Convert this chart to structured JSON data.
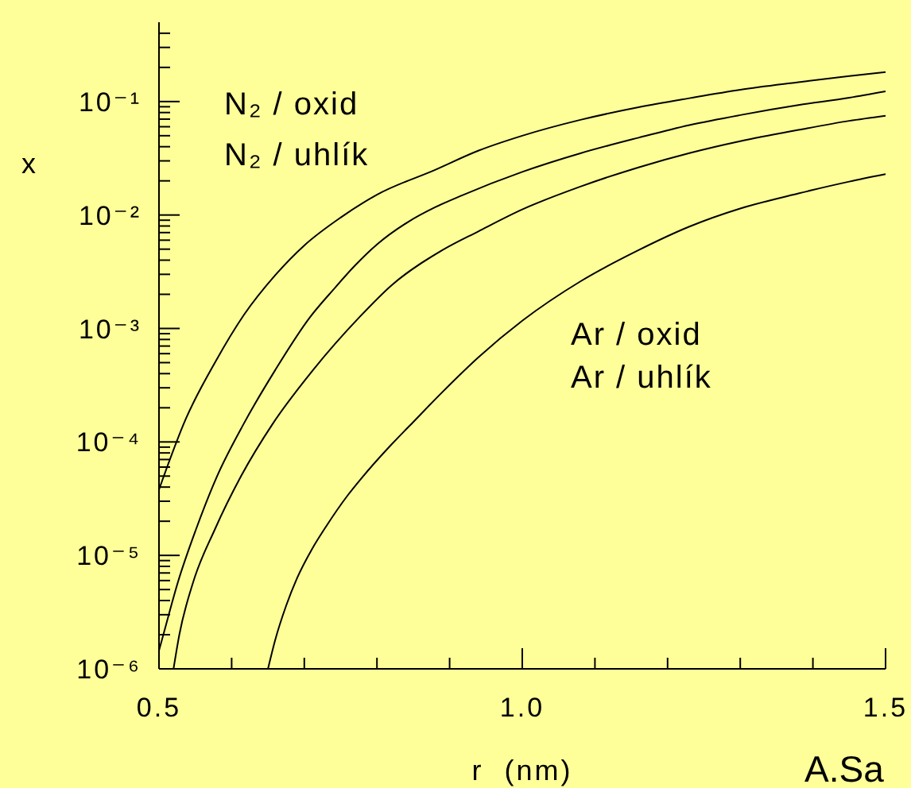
{
  "chart_data": {
    "type": "line",
    "xlabel": "r  (nm)",
    "ylabel": "x",
    "annotations": [
      "N₂ / oxid",
      "N₂ / uhlík",
      "Ar / oxid",
      "Ar / uhlík",
      "A.Sa"
    ],
    "log": true,
    "xlim": [
      0.5,
      1.5
    ],
    "xticks": [
      0.5,
      {
        "value": 0.6,
        "label": null
      },
      {
        "value": 0.7,
        "label": null
      },
      {
        "value": 0.8,
        "label": null
      },
      {
        "value": 0.9,
        "label": null
      },
      {
        "value": 1,
        "label": "1.0"
      },
      {
        "value": 1.1,
        "label": null
      },
      {
        "value": 1.2,
        "label": null
      },
      {
        "value": 1.3,
        "label": null
      },
      {
        "value": 1.4,
        "label": null
      },
      1.5
    ],
    "ylim": [
      1e-06,
      0.5
    ],
    "yticks": [
      {
        "value": 1e-06,
        "label": "10⁻⁶"
      },
      {
        "value": 2e-06,
        "label": null
      },
      {
        "value": 3e-06,
        "label": null
      },
      {
        "value": 4e-06,
        "label": null
      },
      {
        "value": 5e-06,
        "label": null
      },
      {
        "value": 6e-06,
        "label": null
      },
      {
        "value": 7e-06,
        "label": null
      },
      {
        "value": 8e-06,
        "label": null
      },
      {
        "value": 9e-06,
        "label": null
      },
      {
        "value": 1e-05,
        "label": "10⁻⁵"
      },
      {
        "value": 2e-05,
        "label": null
      },
      {
        "value": 3e-05,
        "label": null
      },
      {
        "value": 4e-05,
        "label": null
      },
      {
        "value": 5e-05,
        "label": null
      },
      {
        "value": 6e-05,
        "label": null
      },
      {
        "value": 7e-05,
        "label": null
      },
      {
        "value": 8e-05,
        "label": null
      },
      {
        "value": 9e-05,
        "label": null
      },
      {
        "value": 0.0001,
        "label": "10⁻⁴"
      },
      {
        "value": 0.0002,
        "label": null
      },
      {
        "value": 0.0003,
        "label": null
      },
      {
        "value": 0.0004,
        "label": null
      },
      {
        "value": 0.0005,
        "label": null
      },
      {
        "value": 0.0006,
        "label": null
      },
      {
        "value": 0.0007,
        "label": null
      },
      {
        "value": 0.0008,
        "label": null
      },
      {
        "value": 0.0009,
        "label": null
      },
      {
        "value": 0.001,
        "label": "10⁻³"
      },
      {
        "value": 0.002,
        "label": null
      },
      {
        "value": 0.003,
        "label": null
      },
      {
        "value": 0.004,
        "label": null
      },
      {
        "value": 0.005,
        "label": null
      },
      {
        "value": 0.006,
        "label": null
      },
      {
        "value": 0.007,
        "label": null
      },
      {
        "value": 0.008,
        "label": null
      },
      {
        "value": 0.009,
        "label": null
      },
      {
        "value": 0.01,
        "label": "10⁻²"
      },
      {
        "value": 0.02,
        "label": null
      },
      {
        "value": 0.03,
        "label": null
      },
      {
        "value": 0.04,
        "label": null
      },
      {
        "value": 0.05,
        "label": null
      },
      {
        "value": 0.06,
        "label": null
      },
      {
        "value": 0.07,
        "label": null
      },
      {
        "value": 0.08,
        "label": null
      },
      {
        "value": 0.09,
        "label": null
      },
      {
        "value": 0.1,
        "label": "10⁻¹"
      },
      {
        "value": 0.2,
        "label": null
      },
      {
        "value": 0.3,
        "label": null
      },
      {
        "value": 0.4,
        "label": null
      }
    ],
    "series": [
      {
        "color": "#000000",
        "x": [
          0.5,
          0.537,
          0.577,
          0.617,
          0.66,
          0.7,
          0.75,
          0.8,
          0.88,
          0.94,
          1.0,
          1.08,
          1.16,
          1.23,
          1.3,
          1.38,
          1.45,
          1.5
        ],
        "values": [
          3.8e-05,
          0.00016,
          0.0005,
          0.00132,
          0.00295,
          0.0054,
          0.0095,
          0.0151,
          0.025,
          0.037,
          0.05,
          0.069,
          0.089,
          0.107,
          0.127,
          0.148,
          0.168,
          0.182
        ]
      },
      {
        "color": "#000000",
        "x": [
          0.5,
          0.506,
          0.526,
          0.551,
          0.58,
          0.617,
          0.66,
          0.708,
          0.74,
          0.77,
          0.8,
          0.843,
          0.88,
          0.916,
          1.0,
          1.08,
          1.16,
          1.23,
          1.3,
          1.38,
          1.45,
          1.5
        ],
        "values": [
          1.45e-06,
          2e-06,
          5.8e-06,
          1.7e-05,
          5e-05,
          0.000146,
          0.00043,
          0.00126,
          0.0022,
          0.0036,
          0.0055,
          0.0087,
          0.0117,
          0.0148,
          0.024,
          0.035,
          0.048,
          0.062,
          0.076,
          0.093,
          0.108,
          0.123
        ]
      },
      {
        "color": "#000000",
        "x": [
          0.52,
          0.528,
          0.547,
          0.577,
          0.613,
          0.657,
          0.712,
          0.776,
          0.82,
          0.89,
          0.94,
          1.0,
          1.08,
          1.16,
          1.23,
          1.3,
          1.38,
          1.45,
          1.5
        ],
        "values": [
          1e-06,
          2e-06,
          5.8e-06,
          1.7e-05,
          5e-05,
          0.000146,
          0.00043,
          0.00126,
          0.0024,
          0.0049,
          0.0072,
          0.0112,
          0.0178,
          0.0263,
          0.0351,
          0.0447,
          0.0562,
          0.0676,
          0.075
        ]
      },
      {
        "color": "#000000",
        "x": [
          0.65,
          0.66,
          0.675,
          0.69,
          0.71,
          0.73,
          0.76,
          0.78,
          0.82,
          0.85,
          0.89,
          0.94,
          1.0,
          1.08,
          1.16,
          1.23,
          1.3,
          1.38,
          1.45,
          1.5
        ],
        "values": [
          1e-06,
          1.8e-06,
          3.6e-06,
          6.3e-06,
          1.12e-05,
          1.8e-05,
          3.4e-05,
          4.9e-05,
          9.5e-05,
          0.00015,
          0.000275,
          0.00056,
          0.00117,
          0.0026,
          0.0049,
          0.0079,
          0.0114,
          0.0155,
          0.0197,
          0.0229
        ]
      }
    ]
  }
}
